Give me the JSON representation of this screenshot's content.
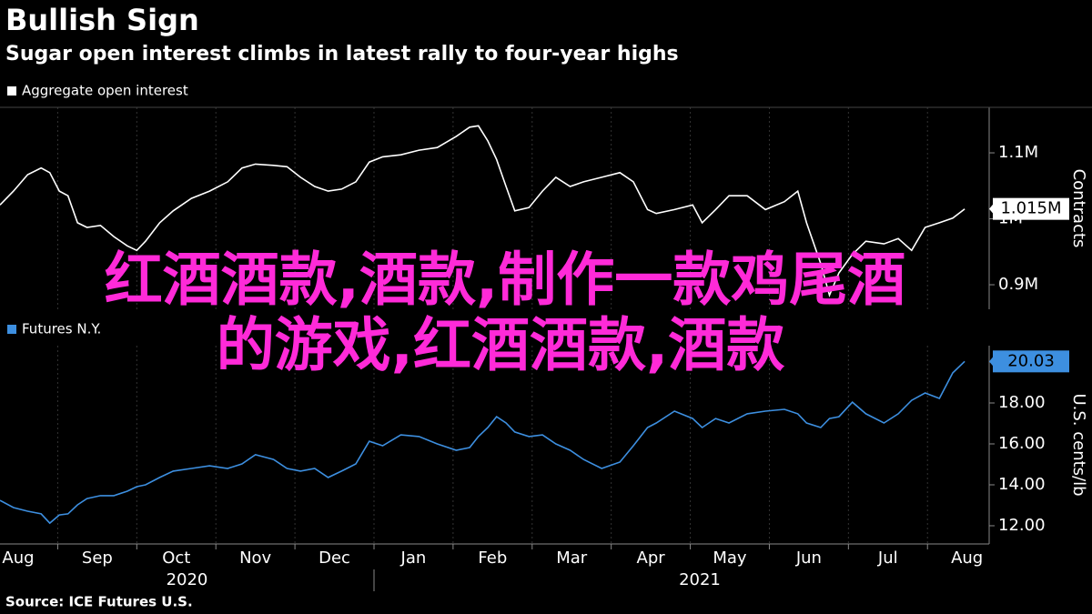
{
  "header": {
    "title": "Bullish Sign",
    "subtitle": "Sugar open interest climbs in latest rally to four-year highs"
  },
  "overlay_lines": [
    "红酒酒款,酒款,制作一款鸡尾酒",
    "的游戏,红酒酒款,酒款"
  ],
  "footer": {
    "source": "Source: ICE Futures U.S."
  },
  "chart_data": [
    {
      "type": "line",
      "y_label": "Contracts",
      "ylim": [
        862800,
        1169000
      ],
      "yticks": [
        {
          "value": 900000,
          "label": "0.9M"
        },
        {
          "value": 1000000,
          "label": "1M"
        },
        {
          "value": 1100000,
          "label": "1.1M"
        }
      ],
      "xlim": [
        0.27,
        12.78
      ],
      "x": [
        0.27,
        0.44,
        0.62,
        0.79,
        0.9,
        1.02,
        1.13,
        1.25,
        1.37,
        1.54,
        1.71,
        1.88,
        2.0,
        2.11,
        2.29,
        2.46,
        2.69,
        2.92,
        3.15,
        3.33,
        3.5,
        3.73,
        3.9,
        4.07,
        4.25,
        4.42,
        4.59,
        4.77,
        4.94,
        5.11,
        5.34,
        5.57,
        5.8,
        6.04,
        6.21,
        6.32,
        6.44,
        6.55,
        6.67,
        6.78,
        6.96,
        7.13,
        7.3,
        7.48,
        7.65,
        7.88,
        8.11,
        8.28,
        8.46,
        8.57,
        8.8,
        9.03,
        9.15,
        9.32,
        9.49,
        9.72,
        9.95,
        10.19,
        10.36,
        10.47,
        10.65,
        10.76,
        10.88,
        11.05,
        11.22,
        11.45,
        11.63,
        11.8,
        11.97,
        12.15,
        12.32,
        12.47
      ],
      "series": [
        {
          "name": "Aggregate open interest",
          "color": "#ffffff",
          "last_label": "1.015M",
          "values": [
            1021000,
            1042000,
            1067000,
            1077000,
            1070000,
            1042000,
            1035000,
            994000,
            987000,
            990000,
            973000,
            959000,
            952000,
            966000,
            994000,
            1012000,
            1031000,
            1042000,
            1056000,
            1077000,
            1083000,
            1081000,
            1079000,
            1063000,
            1049000,
            1042000,
            1045000,
            1056000,
            1086000,
            1094000,
            1097000,
            1104000,
            1108000,
            1125000,
            1139000,
            1141000,
            1118000,
            1090000,
            1049000,
            1012000,
            1017000,
            1042000,
            1063000,
            1049000,
            1056000,
            1063000,
            1070000,
            1056000,
            1014000,
            1008000,
            1014000,
            1021000,
            994000,
            1014000,
            1035000,
            1035000,
            1014000,
            1026000,
            1042000,
            994000,
            932000,
            884000,
            918000,
            946000,
            966000,
            962000,
            970000,
            952000,
            987000,
            994000,
            1001000,
            1015000
          ]
        }
      ]
    },
    {
      "type": "line",
      "y_label": "U.S. cents/lb",
      "ylim": [
        11.11,
        20.8
      ],
      "yticks": [
        {
          "value": 12,
          "label": "12.00"
        },
        {
          "value": 14,
          "label": "14.00"
        },
        {
          "value": 16,
          "label": "16.00"
        },
        {
          "value": 18,
          "label": "18.00"
        },
        {
          "value": 20,
          "label": "20.00"
        }
      ],
      "xlim": [
        0.27,
        12.78
      ],
      "xticks": [
        {
          "value": 0,
          "label": "Aug"
        },
        {
          "value": 1,
          "label": "Sep"
        },
        {
          "value": 2,
          "label": "Oct"
        },
        {
          "value": 3,
          "label": "Nov"
        },
        {
          "value": 4,
          "label": "Dec"
        },
        {
          "value": 5,
          "label": "Jan"
        },
        {
          "value": 6,
          "label": "Feb"
        },
        {
          "value": 7,
          "label": "Mar"
        },
        {
          "value": 8,
          "label": "Apr"
        },
        {
          "value": 9,
          "label": "May"
        },
        {
          "value": 10,
          "label": "Jun"
        },
        {
          "value": 11,
          "label": "Jul"
        },
        {
          "value": 12,
          "label": "Aug"
        }
      ],
      "years": [
        "2020",
        "2021"
      ],
      "x": [
        0.27,
        0.44,
        0.62,
        0.79,
        0.9,
        1.02,
        1.13,
        1.25,
        1.37,
        1.54,
        1.71,
        1.88,
        2.0,
        2.11,
        2.29,
        2.46,
        2.69,
        2.92,
        3.15,
        3.33,
        3.5,
        3.73,
        3.9,
        4.07,
        4.25,
        4.42,
        4.59,
        4.77,
        4.94,
        5.11,
        5.34,
        5.57,
        5.8,
        6.04,
        6.21,
        6.32,
        6.44,
        6.55,
        6.67,
        6.78,
        6.96,
        7.13,
        7.3,
        7.48,
        7.65,
        7.88,
        8.11,
        8.28,
        8.46,
        8.57,
        8.8,
        9.03,
        9.15,
        9.32,
        9.49,
        9.72,
        9.95,
        10.19,
        10.36,
        10.47,
        10.65,
        10.76,
        10.88,
        11.05,
        11.22,
        11.45,
        11.63,
        11.8,
        11.97,
        12.15,
        12.32,
        12.47
      ],
      "series": [
        {
          "name": "Futures N.Y.",
          "color": "#3d8fe0",
          "last_label": "20.03",
          "values": [
            13.24,
            12.89,
            12.71,
            12.58,
            12.13,
            12.53,
            12.58,
            13.02,
            13.33,
            13.47,
            13.47,
            13.69,
            13.91,
            14.0,
            14.36,
            14.67,
            14.8,
            14.93,
            14.8,
            15.02,
            15.47,
            15.24,
            14.8,
            14.67,
            14.8,
            14.36,
            14.67,
            15.02,
            16.13,
            15.91,
            16.44,
            16.36,
            16.0,
            15.69,
            15.82,
            16.36,
            16.8,
            17.33,
            17.02,
            16.58,
            16.36,
            16.44,
            16.0,
            15.69,
            15.24,
            14.8,
            15.11,
            15.91,
            16.8,
            17.02,
            17.6,
            17.24,
            16.8,
            17.24,
            17.02,
            17.47,
            17.6,
            17.69,
            17.47,
            17.02,
            16.8,
            17.24,
            17.33,
            18.04,
            17.47,
            17.02,
            17.47,
            18.13,
            18.49,
            18.22,
            19.47,
            20.03
          ]
        }
      ]
    }
  ]
}
